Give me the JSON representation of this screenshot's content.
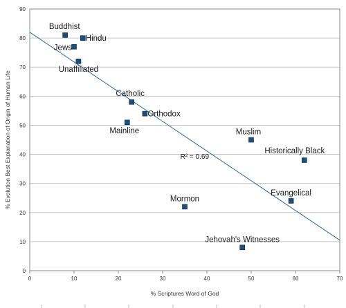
{
  "chart_data": {
    "type": "scatter",
    "title": "",
    "xlabel": "% Scriptures Word of God",
    "ylabel": "% Evolution Best Explanation of Origin of Human Life",
    "xlim": [
      0,
      70
    ],
    "ylim": [
      0,
      90
    ],
    "x_ticks": [
      0,
      10,
      20,
      30,
      40,
      50,
      60,
      70
    ],
    "y_ticks": [
      0,
      10,
      20,
      30,
      40,
      50,
      60,
      70,
      80,
      90
    ],
    "grid": {
      "horizontal": true,
      "vertical": false
    },
    "legend": "none",
    "colors": {
      "point": "#1f4e79",
      "trendline": "#2d6a9a",
      "grid": "#c8c8c8"
    },
    "points": [
      {
        "label": "Buddhist",
        "x": 8,
        "y": 81
      },
      {
        "label": "Hindu",
        "x": 12,
        "y": 80
      },
      {
        "label": "Jews",
        "x": 10,
        "y": 77
      },
      {
        "label": "Unaffiliated",
        "x": 11,
        "y": 72
      },
      {
        "label": "Catholic",
        "x": 23,
        "y": 58
      },
      {
        "label": "Orthodox",
        "x": 26,
        "y": 54
      },
      {
        "label": "Mainline",
        "x": 22,
        "y": 51
      },
      {
        "label": "Muslim",
        "x": 50,
        "y": 45
      },
      {
        "label": "Historically Black",
        "x": 62,
        "y": 38
      },
      {
        "label": "Evangelical",
        "x": 59,
        "y": 24
      },
      {
        "label": "Mormon",
        "x": 35,
        "y": 22
      },
      {
        "label": "Jehovah's Witnesses",
        "x": 48,
        "y": 8
      }
    ],
    "trendline": {
      "x0": 0,
      "y0": 82,
      "x1": 70,
      "y1": 10.5
    },
    "annotation": {
      "text": "R² = 0.69",
      "x": 34,
      "y": 38.5
    }
  }
}
